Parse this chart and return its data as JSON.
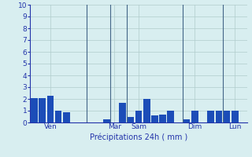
{
  "bar_values": [
    2.1,
    2.1,
    2.3,
    1.0,
    0.9,
    0.0,
    0.0,
    0.0,
    0.0,
    0.3,
    0.0,
    1.7,
    0.5,
    1.0,
    2.0,
    0.6,
    0.7,
    1.0,
    0.0,
    0.3,
    1.0,
    0.0,
    1.0,
    1.0,
    1.0,
    1.0,
    0.0
  ],
  "xlabel": "Précipitations 24h ( mm )",
  "ylim": [
    0,
    10
  ],
  "yticks": [
    0,
    1,
    2,
    3,
    4,
    5,
    6,
    7,
    8,
    9,
    10
  ],
  "n_bars": 27,
  "background_color": "#d8eef0",
  "grid_color": "#b0cccc",
  "bar_color": "#1c4db8",
  "label_color": "#2233aa",
  "day_labels": [
    "Ven",
    "Mar",
    "Sam",
    "Dim",
    "Lun"
  ],
  "day_tick_positions": [
    2,
    10,
    13,
    20,
    25
  ],
  "separator_positions": [
    6.5,
    9.5,
    11.5,
    18.5,
    23.5
  ],
  "figsize": [
    3.2,
    2.0
  ],
  "dpi": 100
}
